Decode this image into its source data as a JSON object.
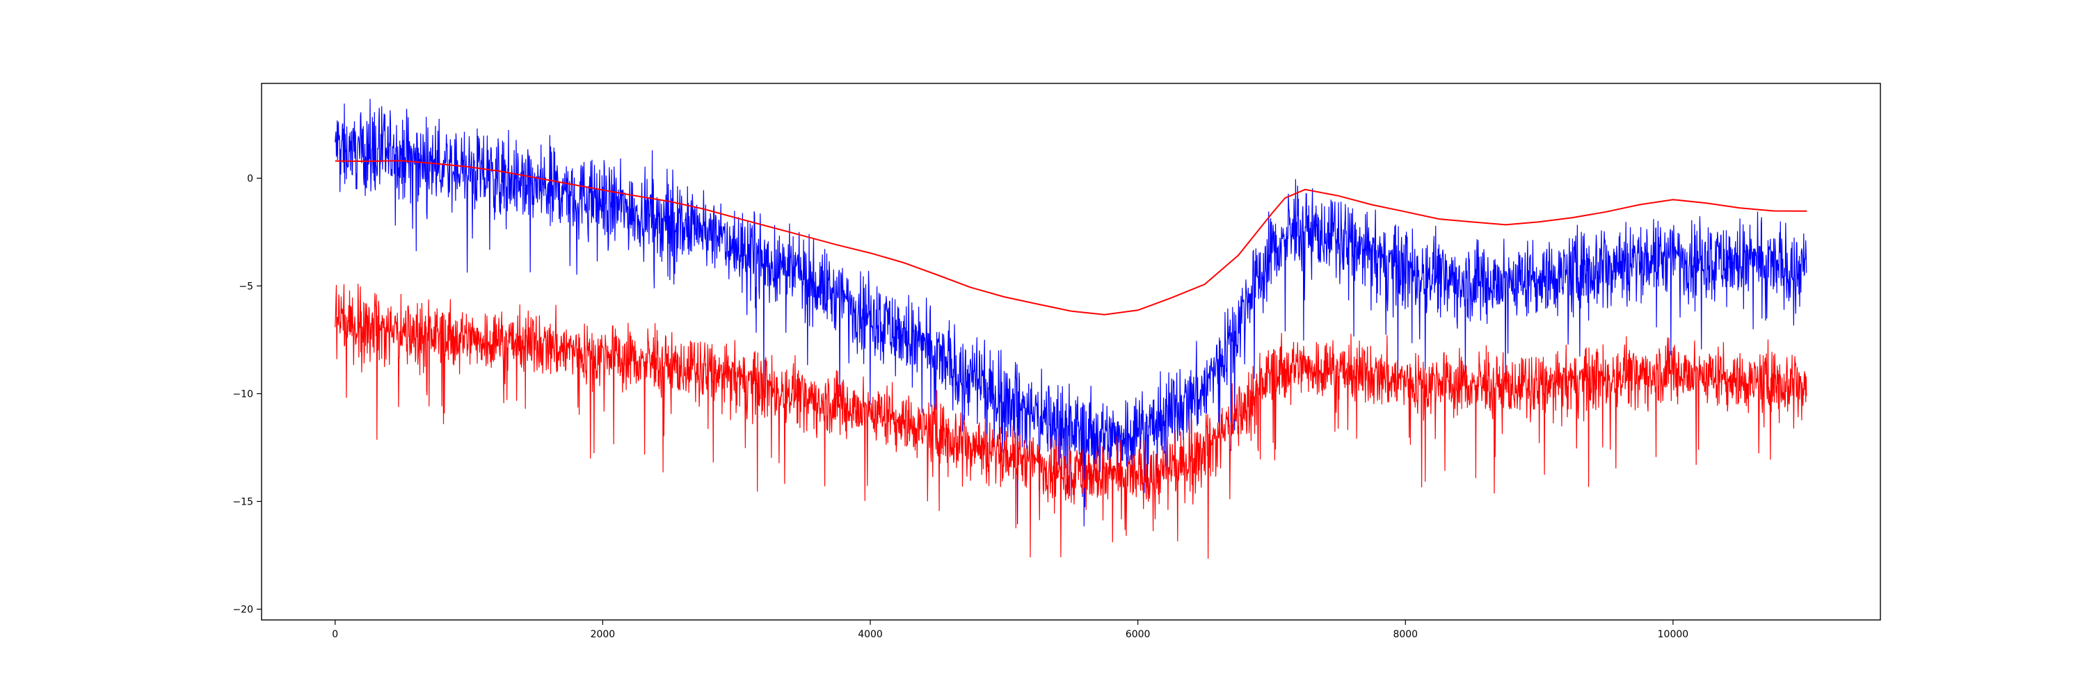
{
  "chart_data": {
    "type": "line",
    "title": "",
    "xlabel": "",
    "ylabel": "",
    "xlim": [
      -550,
      11550
    ],
    "ylim": [
      -20.5,
      4.4
    ],
    "x_ticks": [
      0,
      2000,
      4000,
      6000,
      8000,
      10000
    ],
    "x_tick_labels": [
      "0",
      "2000",
      "4000",
      "6000",
      "8000",
      "10000"
    ],
    "y_ticks": [
      0,
      -5,
      -10,
      -15,
      -20
    ],
    "y_tick_labels": [
      "0",
      "−5",
      "−10",
      "−15",
      "−20"
    ],
    "grid": false,
    "legend": "none",
    "x_range": [
      0,
      11000
    ],
    "series": [
      {
        "role": "noisy",
        "color": "#0000ff",
        "baseline": [
          [
            0,
            1.5
          ],
          [
            500,
            1.0
          ],
          [
            1000,
            0.3
          ],
          [
            1500,
            -0.4
          ],
          [
            2000,
            -1.1
          ],
          [
            2500,
            -2.0
          ],
          [
            3000,
            -3.2
          ],
          [
            3500,
            -4.6
          ],
          [
            4000,
            -6.3
          ],
          [
            4500,
            -8.3
          ],
          [
            5000,
            -10.3
          ],
          [
            5500,
            -11.6
          ],
          [
            5800,
            -12.0
          ],
          [
            6100,
            -11.5
          ],
          [
            6500,
            -9.8
          ],
          [
            6800,
            -6.0
          ],
          [
            7000,
            -3.4
          ],
          [
            7200,
            -2.3
          ],
          [
            7500,
            -2.8
          ],
          [
            7800,
            -3.8
          ],
          [
            8000,
            -4.2
          ],
          [
            8500,
            -4.8
          ],
          [
            9000,
            -4.7
          ],
          [
            9500,
            -4.0
          ],
          [
            10000,
            -3.6
          ],
          [
            10500,
            -3.9
          ],
          [
            11000,
            -4.2
          ]
        ],
        "noise_amplitude": 1.4
      },
      {
        "role": "noisy",
        "color": "#ff0000",
        "baseline": [
          [
            0,
            -6.6
          ],
          [
            500,
            -7.1
          ],
          [
            1000,
            -7.4
          ],
          [
            1500,
            -7.7
          ],
          [
            2000,
            -8.2
          ],
          [
            2500,
            -8.7
          ],
          [
            3000,
            -9.3
          ],
          [
            3500,
            -10.1
          ],
          [
            4000,
            -10.8
          ],
          [
            4500,
            -11.8
          ],
          [
            5000,
            -12.8
          ],
          [
            5500,
            -13.6
          ],
          [
            5800,
            -13.9
          ],
          [
            6200,
            -13.7
          ],
          [
            6500,
            -12.6
          ],
          [
            6800,
            -10.6
          ],
          [
            7000,
            -9.0
          ],
          [
            7200,
            -8.7
          ],
          [
            7500,
            -8.9
          ],
          [
            8000,
            -9.4
          ],
          [
            8500,
            -9.6
          ],
          [
            9000,
            -9.7
          ],
          [
            9500,
            -9.2
          ],
          [
            10000,
            -8.9
          ],
          [
            10500,
            -9.4
          ],
          [
            11000,
            -9.5
          ]
        ],
        "noise_amplitude": 1.1
      },
      {
        "role": "smooth",
        "color": "#ff0000",
        "points": [
          [
            0,
            0.8
          ],
          [
            250,
            0.75
          ],
          [
            500,
            0.75
          ],
          [
            750,
            0.6
          ],
          [
            1000,
            0.45
          ],
          [
            1250,
            0.25
          ],
          [
            1500,
            0.0
          ],
          [
            1750,
            -0.25
          ],
          [
            2000,
            -0.5
          ],
          [
            2250,
            -0.75
          ],
          [
            2500,
            -1.0
          ],
          [
            2750,
            -1.35
          ],
          [
            3000,
            -1.8
          ],
          [
            3250,
            -2.25
          ],
          [
            3500,
            -2.7
          ],
          [
            3750,
            -3.15
          ],
          [
            4000,
            -3.55
          ],
          [
            4250,
            -4.0
          ],
          [
            4500,
            -4.55
          ],
          [
            4750,
            -5.1
          ],
          [
            5000,
            -5.5
          ],
          [
            5250,
            -5.8
          ],
          [
            5500,
            -6.1
          ],
          [
            5750,
            -6.25
          ],
          [
            6000,
            -6.05
          ],
          [
            6250,
            -5.5
          ],
          [
            6500,
            -4.9
          ],
          [
            6750,
            -3.6
          ],
          [
            7000,
            -1.7
          ],
          [
            7100,
            -0.9
          ],
          [
            7250,
            -0.6
          ],
          [
            7500,
            -0.9
          ],
          [
            7750,
            -1.3
          ],
          [
            8000,
            -1.6
          ],
          [
            8250,
            -1.9
          ],
          [
            8500,
            -2.0
          ],
          [
            8750,
            -2.1
          ],
          [
            9000,
            -1.95
          ],
          [
            9250,
            -1.75
          ],
          [
            9500,
            -1.5
          ],
          [
            9750,
            -1.2
          ],
          [
            10000,
            -1.0
          ],
          [
            10250,
            -1.2
          ],
          [
            10500,
            -1.45
          ],
          [
            10750,
            -1.6
          ],
          [
            11000,
            -1.6
          ]
        ]
      }
    ]
  }
}
